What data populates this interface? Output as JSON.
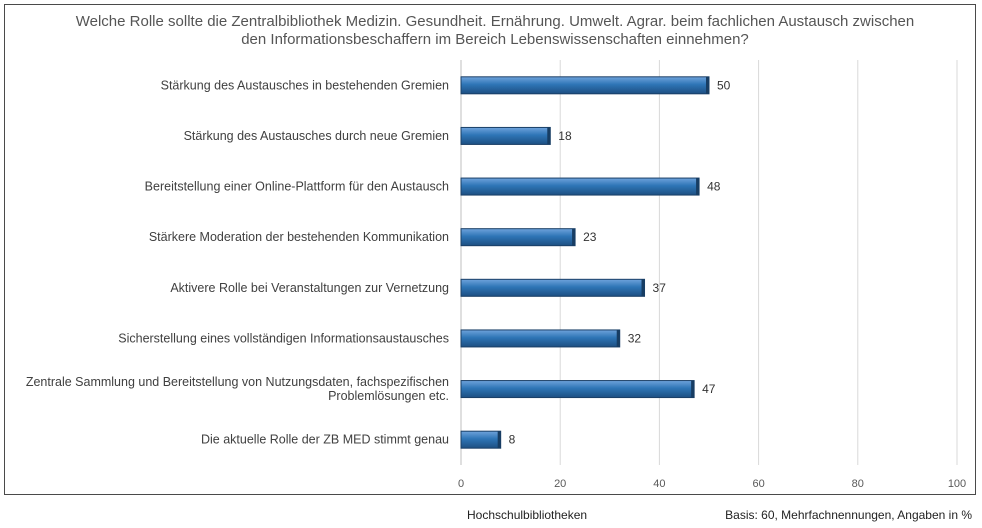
{
  "chart_data": {
    "type": "bar",
    "orientation": "horizontal",
    "title": "Welche Rolle sollte die Zentralbibliothek Medizin. Gesundheit. Ernährung. Umwelt. Agrar. beim fachlichen Austausch zwischen den Informationsbeschaffern im Bereich Lebenswissenschaften einnehmen?",
    "categories": [
      [
        "Stärkung des Austausches in bestehenden Gremien"
      ],
      [
        "Stärkung des Austausches durch neue Gremien"
      ],
      [
        "Bereitstellung einer Online-Plattform für den Austausch"
      ],
      [
        "Stärkere Moderation der bestehenden Kommunikation"
      ],
      [
        "Aktivere Rolle bei Veranstaltungen zur Vernetzung"
      ],
      [
        "Sicherstellung eines vollständigen Informationsaustausches"
      ],
      [
        "Zentrale Sammlung und Bereitstellung von Nutzungsdaten, fachspezifischen",
        "Problemlösungen etc."
      ],
      [
        "Die aktuelle Rolle der ZB MED stimmt genau"
      ]
    ],
    "values": [
      50,
      18,
      48,
      23,
      37,
      32,
      47,
      8
    ],
    "xlim": [
      0,
      100
    ],
    "xticks": [
      0,
      20,
      40,
      60,
      80,
      100
    ],
    "grid": true,
    "bar_color": "#2E75B6"
  },
  "footer": {
    "series_label": "Hochschulbibliotheken",
    "basis_note": "Basis: 60, Mehrfachnennungen, Angaben in %"
  }
}
